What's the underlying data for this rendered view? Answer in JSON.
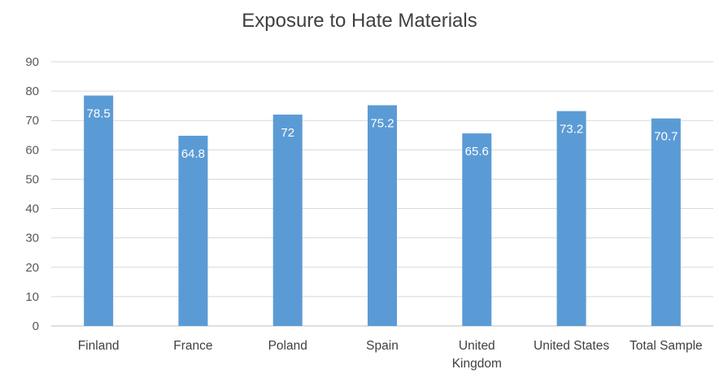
{
  "chart_data": {
    "type": "bar",
    "title": "Exposure to Hate Materials",
    "categories": [
      [
        "Finland"
      ],
      [
        "France"
      ],
      [
        "Poland"
      ],
      [
        "Spain"
      ],
      [
        "United",
        "Kingdom"
      ],
      [
        "United States"
      ],
      [
        "Total Sample"
      ]
    ],
    "values": [
      78.5,
      64.8,
      72,
      75.2,
      65.6,
      73.2,
      70.7
    ],
    "value_labels": [
      "78.5",
      "64.8",
      "72",
      "75.2",
      "65.6",
      "73.2",
      "70.7"
    ],
    "ylim": [
      0,
      90
    ],
    "yticks": [
      "0",
      "10",
      "20",
      "30",
      "40",
      "50",
      "60",
      "70",
      "80",
      "90"
    ],
    "grid": true,
    "bar_color": "#5b9bd5",
    "xlabel": "",
    "ylabel": ""
  }
}
